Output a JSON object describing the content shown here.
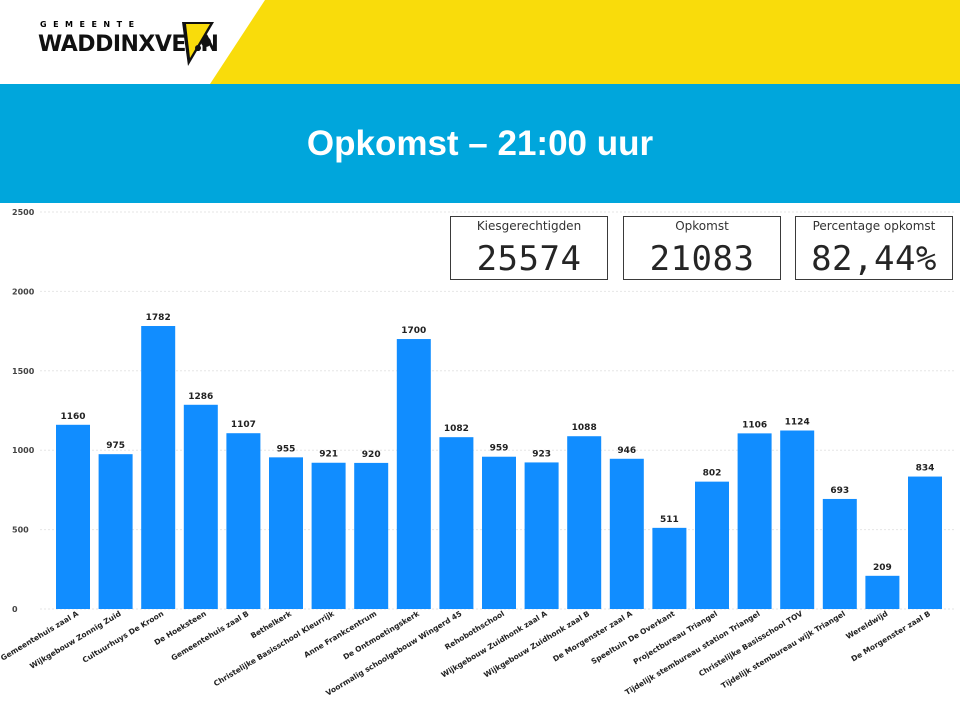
{
  "header": {
    "logo_top": "GEMEENTE",
    "logo_main": "WADDINXVEEN"
  },
  "title": "Opkomst – 21:00 uur",
  "cards": {
    "kiesgerechtigden": {
      "label": "Kiesgerechtigden",
      "value": "25574"
    },
    "opkomst": {
      "label": "Opkomst",
      "value": "21083"
    },
    "percentage": {
      "label": "Percentage opkomst",
      "value": "82,44%"
    }
  },
  "colors": {
    "accent_yellow": "#f9dc0b",
    "title_band": "#00a6dc",
    "bar": "#118dff"
  },
  "chart_data": {
    "type": "bar",
    "categories": [
      "Gemeentehuis zaal A",
      "Wijkgebouw Zonnig Zuid",
      "Cultuurhuys De Kroon",
      "De Hoeksteen",
      "Gemeentehuis zaal B",
      "Bethelkerk",
      "Christelijke Basisschool Kleurrijk",
      "Anne Frankcentrum",
      "De Ontmoetingskerk",
      "Voormalig schoolgebouw Wingerd 45",
      "Rehobothschool",
      "Wijkgebouw Zuidhonk zaal A",
      "Wijkgebouw Zuidhonk zaal B",
      "De Morgenster zaal A",
      "Speeltuin De Overkant",
      "Projectbureau Triangel",
      "Tijdelijk stembureau station Triangel",
      "Christelijke Basisschool TOV",
      "Tijdelijk stembureau wijk Triangel",
      "Wereldwijd",
      "De Morgenster zaal B"
    ],
    "values": [
      1160,
      975,
      1782,
      1286,
      1107,
      955,
      921,
      920,
      1700,
      1082,
      959,
      923,
      1088,
      946,
      511,
      802,
      1106,
      1124,
      693,
      209,
      834
    ],
    "yticks": [
      "0",
      "500",
      "1000",
      "1500",
      "2000",
      "2500"
    ],
    "ylim": [
      0,
      2500
    ],
    "grid": true
  }
}
